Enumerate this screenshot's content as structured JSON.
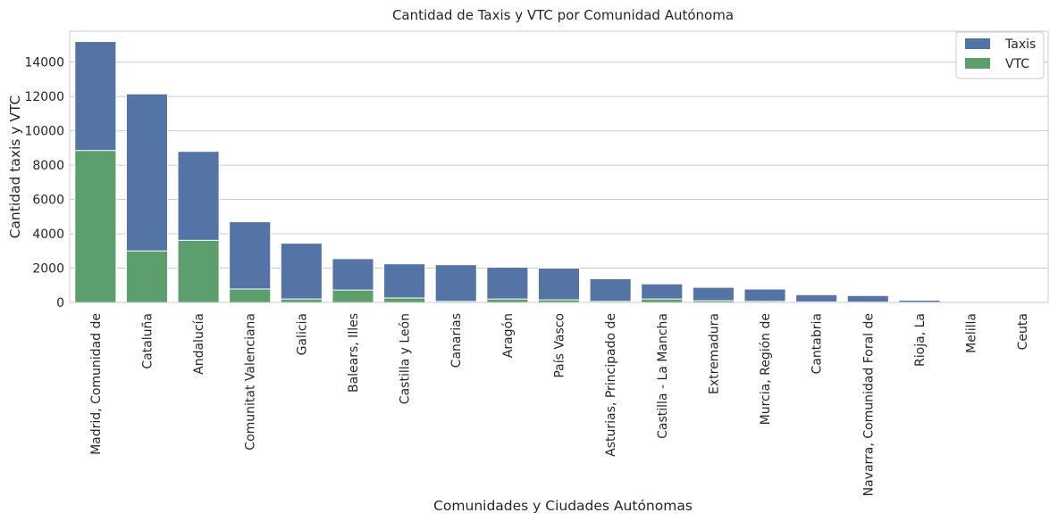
{
  "chart_data": {
    "type": "bar",
    "title": "Cantidad de Taxis y VTC por Comunidad Autónoma",
    "xlabel": "Comunidades y Ciudades Autónomas",
    "ylabel": "Cantidad taxis y VTC",
    "ylim": [
      0,
      15800
    ],
    "yticks": [
      0,
      2000,
      4000,
      6000,
      8000,
      10000,
      12000,
      14000
    ],
    "grid": true,
    "legend_position": "top-right",
    "overlay": true,
    "categories": [
      "Madrid, Comunidad de",
      "Cataluña",
      "Andalucía",
      "Comunitat Valenciana",
      "Galicia",
      "Balears, Illes",
      "Castilla y León",
      "Canarias",
      "Aragón",
      "País Vasco",
      "Asturias, Principado de",
      "Castilla - La Mancha",
      "Extremadura",
      "Murcia, Región de",
      "Cantabria",
      "Navarra, Comunidad Foral de",
      "Rioja, La",
      "Melilla",
      "Ceuta"
    ],
    "series": [
      {
        "name": "Taxis",
        "color": "#5574a6",
        "values": [
          15200,
          12150,
          8800,
          4700,
          3450,
          2550,
          2250,
          2200,
          2050,
          2000,
          1380,
          1080,
          880,
          780,
          450,
          400,
          130,
          40,
          30
        ]
      },
      {
        "name": "VTC",
        "color": "#5c9e6c",
        "values": [
          8850,
          3000,
          3620,
          780,
          200,
          720,
          260,
          60,
          200,
          150,
          60,
          200,
          100,
          60,
          30,
          20,
          10,
          0,
          0
        ]
      }
    ]
  }
}
